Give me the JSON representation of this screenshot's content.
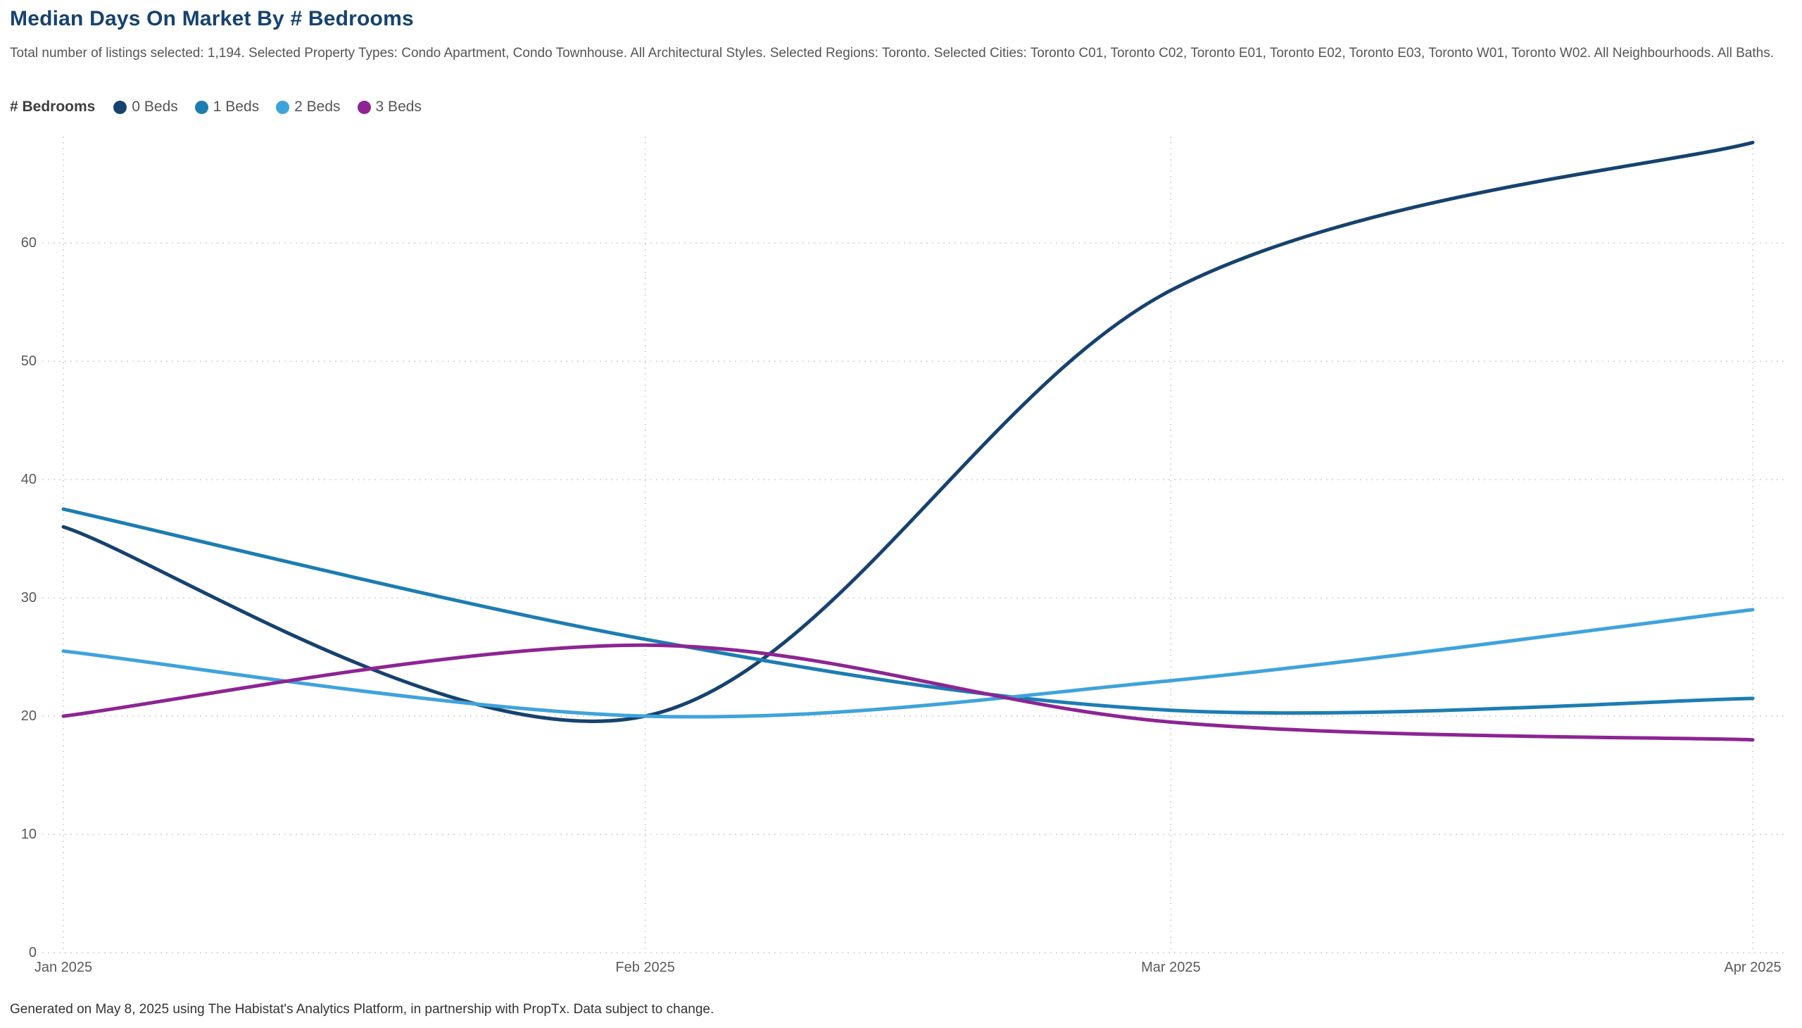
{
  "page": {
    "footer": "Generated on May 8, 2025 using The Habistat's Analytics Platform, in partnership with PropTx. Data subject to change."
  },
  "legend": {
    "title": "# Bedrooms"
  },
  "chart_data": {
    "type": "line",
    "title": "Median Days On Market By # Bedrooms",
    "subtitle": "Total number of listings selected: 1,194. Selected Property Types: Condo Apartment, Condo Townhouse. All Architectural Styles. Selected Regions: Toronto. Selected Cities: Toronto C01, Toronto C02, Toronto E01, Toronto E02, Toronto E03, Toronto W01, Toronto W02. All Neighbourhoods. All Baths.",
    "x": [
      "Jan 2025",
      "Feb 2025",
      "Mar 2025",
      "Apr 2025"
    ],
    "x_days": [
      0,
      31,
      59,
      90
    ],
    "yticks": [
      0,
      10,
      20,
      30,
      40,
      50,
      60
    ],
    "ylim": [
      0,
      69
    ],
    "grid": "dotted",
    "legend_position": "top-left",
    "curve": "spline",
    "series": [
      {
        "name": "0 Beds",
        "color": "#17426f",
        "values": [
          36,
          20,
          56,
          68.5
        ]
      },
      {
        "name": "1 Beds",
        "color": "#1d7db2",
        "values": [
          37.5,
          26.5,
          20.5,
          21.5
        ]
      },
      {
        "name": "2 Beds",
        "color": "#3fa3db",
        "values": [
          25.5,
          20,
          23,
          29
        ]
      },
      {
        "name": "3 Beds",
        "color": "#8c2593",
        "values": [
          20,
          26,
          19.5,
          18
        ]
      }
    ]
  }
}
